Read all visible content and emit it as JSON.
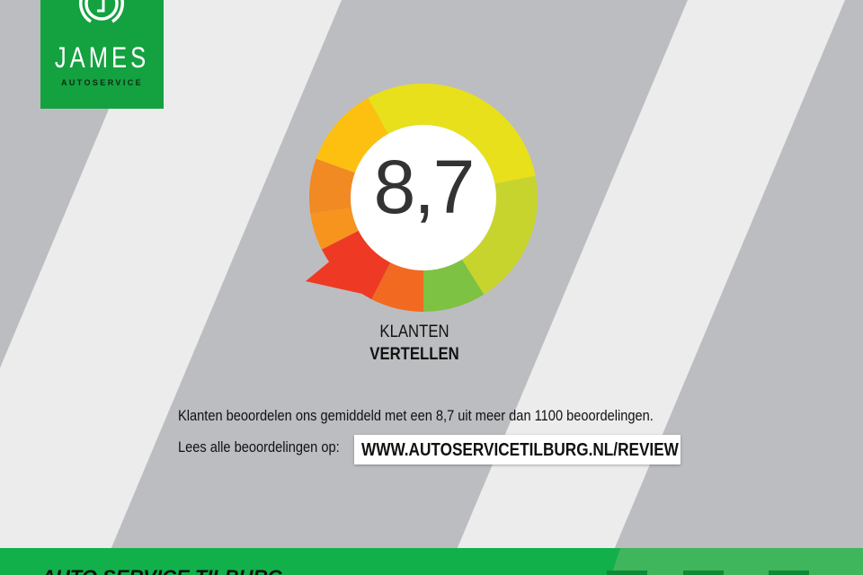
{
  "colors": {
    "background": "#bcbdc0",
    "stripe": "#ececec",
    "brand_green": "#14a13f",
    "footer_green": "#12b04a",
    "footer_accent": "#3fb55c",
    "footer_dark": "#0d8a35"
  },
  "logo": {
    "name": "JAMES",
    "subtitle": "AUTOSERVICE",
    "icon": "steering-wheel-j-icon"
  },
  "rating": {
    "score_text": "8,7",
    "score": 8.7,
    "segments": [
      {
        "color": "#e8e01a"
      },
      {
        "color": "#c8d42e"
      },
      {
        "color": "#7dc242"
      },
      {
        "color": "#f26a22"
      },
      {
        "color": "#ee3a24"
      },
      {
        "color": "#f7941d"
      },
      {
        "color": "#f18a22"
      },
      {
        "color": "#fdc010"
      }
    ],
    "caption_line1": "KLANTEN",
    "caption_line2": "VERTELLEN"
  },
  "text": {
    "summary": "Klanten beoordelen ons gemiddeld met een 8,7 uit meer dan 1100 beoordelingen.",
    "read_all": "Lees alle beoordelingen op:",
    "url": "WWW.AUTOSERVICETILBURG.NL/REVIEW"
  },
  "footer": {
    "title": "AUTO SERVICE TILBURG"
  }
}
